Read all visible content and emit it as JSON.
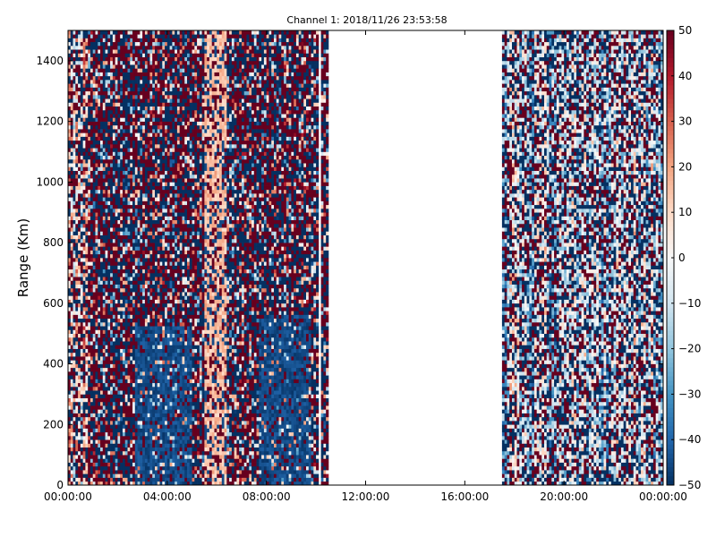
{
  "chart_data": {
    "type": "heatmap",
    "title": "Channel 1: 2018/11/26 23:53:58",
    "xlabel": "",
    "ylabel": "Range (Km)",
    "x_range_hours": [
      0,
      24
    ],
    "ylim": [
      0,
      1500
    ],
    "x_tick_labels": [
      "00:00:00",
      "04:00:00",
      "08:00:00",
      "12:00:00",
      "16:00:00",
      "20:00:00",
      "00:00:00"
    ],
    "x_tick_hours": [
      0,
      4,
      8,
      12,
      16,
      20,
      24
    ],
    "y_ticks": [
      0,
      200,
      400,
      600,
      800,
      1000,
      1200,
      1400
    ],
    "y_tick_labels": [
      "0",
      "200",
      "400",
      "600",
      "800",
      "1000",
      "1200",
      "1400"
    ],
    "colorbar": {
      "vmin": -50,
      "vmax": 50,
      "ticks": [
        -50,
        -40,
        -30,
        -20,
        -10,
        0,
        10,
        20,
        30,
        40,
        50
      ],
      "tick_labels": [
        "−50",
        "−40",
        "−30",
        "−20",
        "−10",
        "0",
        "10",
        "20",
        "30",
        "40",
        "50"
      ],
      "colormap": "RdBu_r"
    },
    "data_segments_hours": [
      [
        0,
        10.1
      ],
      [
        10.25,
        10.55
      ],
      [
        17.5,
        24
      ]
    ],
    "no_data_gaps_hours": [
      [
        10.1,
        10.25
      ],
      [
        10.55,
        17.5
      ]
    ],
    "features": [
      {
        "hours": [
          5.5,
          6.4
        ],
        "range_km": [
          0,
          1500
        ],
        "typical_value": 15
      },
      {
        "hours": [
          2.7,
          5.0
        ],
        "range_km": [
          0,
          520
        ],
        "typical_value": -45
      },
      {
        "hours": [
          7.7,
          9.8
        ],
        "range_km": [
          0,
          560
        ],
        "typical_value": -45
      },
      {
        "hours": [
          0,
          0.8
        ],
        "range_km": [
          0,
          1500
        ],
        "typical_value": 5
      },
      {
        "hours": [
          17.5,
          24
        ],
        "range_km": [
          0,
          1500
        ],
        "typical_value": -10
      }
    ]
  }
}
